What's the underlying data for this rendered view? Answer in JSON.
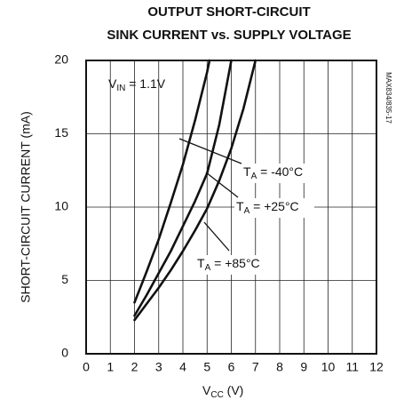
{
  "chart_data": {
    "type": "line",
    "title": [
      "OUTPUT SHORT-CIRCUIT",
      "SINK CURRENT vs. SUPPLY VOLTAGE"
    ],
    "x_label": {
      "main": "V",
      "sub": "CC",
      "rest": " (V)"
    },
    "y_label": "SHORT-CIRCUIT CURRENT (mA)",
    "side_note": "MAX834/835-17",
    "annotations": [
      {
        "main": "V",
        "sub": "IN",
        "rest": " = 1.1V"
      },
      {
        "main": "T",
        "sub": "A",
        "rest": " = -40°C"
      },
      {
        "main": "T",
        "sub": "A",
        "rest": " = +25°C"
      },
      {
        "main": "T",
        "sub": "A",
        "rest": " = +85°C"
      }
    ],
    "xlim": [
      0,
      12
    ],
    "xticks": [
      0,
      1,
      2,
      3,
      4,
      5,
      6,
      7,
      8,
      9,
      10,
      11,
      12
    ],
    "ylim": [
      0,
      20
    ],
    "yticks": [
      0,
      5,
      10,
      15,
      20
    ],
    "grid": true,
    "series": [
      {
        "color": "#111111",
        "x": [
          2,
          2.5,
          3,
          3.5,
          4,
          4.5,
          5,
          5.1
        ],
        "values": [
          3.5,
          5.6,
          7.8,
          10.3,
          12.9,
          15.9,
          19.2,
          20
        ]
      },
      {
        "color": "#111111",
        "x": [
          2,
          2.5,
          3,
          3.5,
          4,
          4.5,
          5,
          5.5,
          6
        ],
        "values": [
          2.6,
          4.0,
          5.5,
          7.0,
          8.7,
          10.4,
          12.3,
          15.6,
          20
        ]
      },
      {
        "color": "#111111",
        "x": [
          2,
          2.5,
          3,
          3.5,
          4,
          4.5,
          5,
          5.5,
          6,
          6.5,
          7
        ],
        "values": [
          2.3,
          3.4,
          4.5,
          5.7,
          7.0,
          8.4,
          9.9,
          11.8,
          14.0,
          16.7,
          20
        ]
      }
    ]
  }
}
